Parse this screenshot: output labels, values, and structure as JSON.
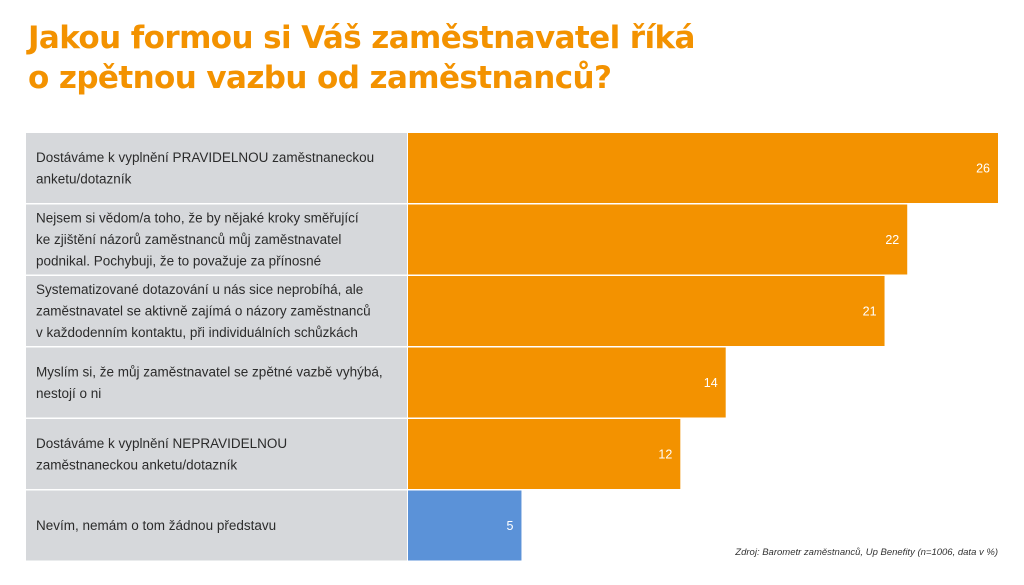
{
  "title_line1": "Jakou formou si Váš zaměstnavatel říká",
  "title_line2": "o zpětnou vazbu od zaměstnanců?",
  "source": "Zdroj: Barometr zaměstnanců, Up Benefity (n=1006, data v %)",
  "colors": {
    "title": "#f39200",
    "bar": "#f39200",
    "bar_highlight": "#5b92d8",
    "label_panel": "#d6d8db",
    "value_text": "#ffffff"
  },
  "chart_data": {
    "type": "bar",
    "orientation": "horizontal",
    "categories": [
      [
        "Dostáváme k vyplnění PRAVIDELNOU zaměstnaneckou",
        "anketu/dotazník"
      ],
      [
        "Nejsem si vědom/a toho, že by nějaké kroky směřující",
        "ke zjištění názorů zaměstnanců můj zaměstnavatel",
        "podnikal. Pochybuji, že to považuje za přínosné"
      ],
      [
        "Systematizované dotazování u nás sice neprobíhá, ale",
        "zaměstnavatel se aktivně zajímá o názory zaměstnanců",
        "v každodenním kontaktu, při individuálních schůzkách"
      ],
      [
        "Myslím si, že můj zaměstnavatel se zpětné vazbě vyhýbá,",
        "nestojí o ni"
      ],
      [
        "Dostáváme k vyplnění NEPRAVIDELNOU",
        "zaměstnaneckou anketu/dotazník"
      ],
      [
        "Nevím, nemám o tom žádnou představu"
      ]
    ],
    "values": [
      26,
      22,
      21,
      14,
      12,
      5
    ],
    "highlight_index": 5,
    "xlim": [
      0,
      26
    ]
  }
}
